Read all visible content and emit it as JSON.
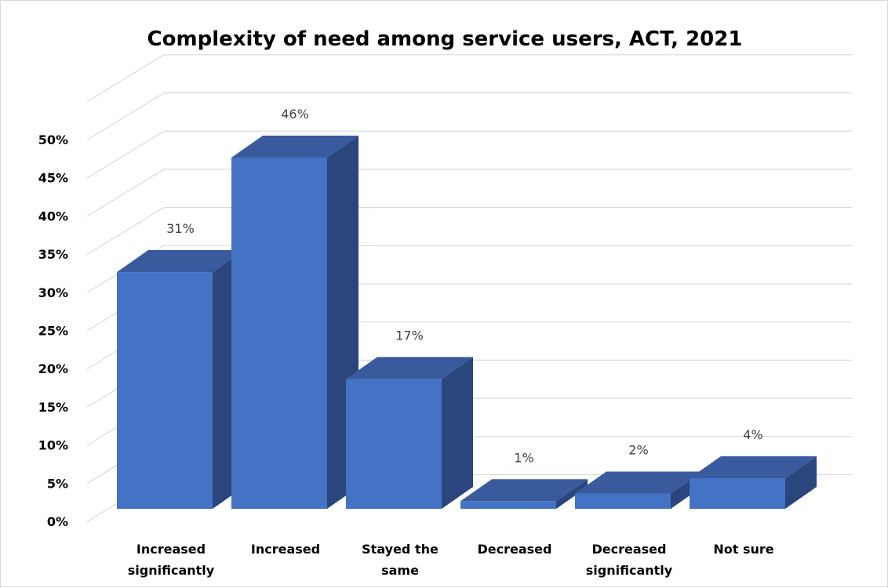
{
  "chart_data": {
    "type": "bar",
    "title": "Complexity of need among service users, ACT, 2021",
    "categories": [
      [
        "Increased",
        "significantly"
      ],
      [
        "Increased"
      ],
      [
        "Stayed the",
        "same"
      ],
      [
        "Decreased"
      ],
      [
        "Decreased",
        "significantly"
      ],
      [
        "Not sure"
      ]
    ],
    "values": [
      31,
      46,
      17,
      1,
      2,
      4
    ],
    "data_labels": [
      "31%",
      "46%",
      "17%",
      "1%",
      "2%",
      "4%"
    ],
    "y_ticks": [
      0,
      5,
      10,
      15,
      20,
      25,
      30,
      35,
      40,
      45,
      50
    ],
    "y_tick_labels": [
      "0%",
      "5%",
      "10%",
      "15%",
      "20%",
      "25%",
      "30%",
      "35%",
      "40%",
      "45%",
      "50%"
    ],
    "ylim": [
      0,
      50
    ],
    "grid": true,
    "legend": "none",
    "style": "3d-clustered-column",
    "colors": {
      "bar_front": "#4472c4",
      "bar_side": "#2b467d",
      "bar_top": "#3a5a9e",
      "grid": "#d9d9d9"
    }
  }
}
